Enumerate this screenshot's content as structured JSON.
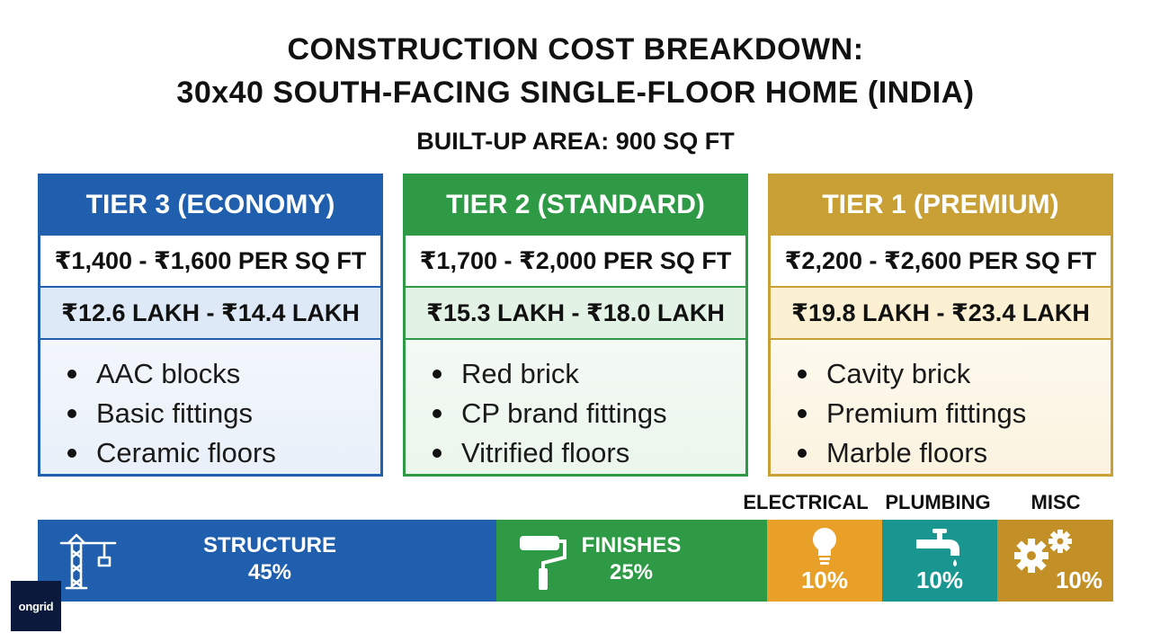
{
  "title_line1": "CONSTRUCTION COST BREAKDOWN:",
  "title_line2": "30x40 SOUTH-FACING SINGLE-FLOOR HOME (INDIA)",
  "subtitle": "BUILT-UP AREA: 900 SQ FT",
  "tiers": [
    {
      "name": "TIER 3 (ECONOMY)",
      "rate": "₹1,400 - ₹1,600 PER SQ FT",
      "total": "₹12.6 LAKH - ₹14.4 LAKH",
      "features": [
        "AAC blocks",
        "Basic fittings",
        "Ceramic floors"
      ],
      "color": "#1f5fad"
    },
    {
      "name": "TIER 2 (STANDARD)",
      "rate": "₹1,700 - ₹2,000 PER SQ FT",
      "total": "₹15.3 LAKH - ₹18.0 LAKH",
      "features": [
        "Red brick",
        "CP brand fittings",
        "Vitrified floors"
      ],
      "color": "#2e9a45"
    },
    {
      "name": "TIER 1 (PREMIUM)",
      "rate": "₹2,200 - ₹2,600 PER SQ FT",
      "total": "₹19.8 LAKH - ₹23.4 LAKH",
      "features": [
        "Cavity brick",
        "Premium fittings",
        "Marble floors"
      ],
      "color": "#c9a035"
    }
  ],
  "breakdown": [
    {
      "name": "STRUCTURE",
      "percent": "45%",
      "value": 45,
      "color": "#1f5fad",
      "icon": "crane-icon"
    },
    {
      "name": "FINISHES",
      "percent": "25%",
      "value": 25,
      "color": "#2e9a45",
      "icon": "paint-roller-icon"
    },
    {
      "name": "ELECTRICAL",
      "percent": "10%",
      "value": 10,
      "color": "#e9a028",
      "icon": "lightbulb-icon"
    },
    {
      "name": "PLUMBING",
      "percent": "10%",
      "value": 10,
      "color": "#18968f",
      "icon": "water-tap-icon"
    },
    {
      "name": "MISC",
      "percent": "10%",
      "value": 10,
      "color": "#c29026",
      "icon": "gears-icon"
    }
  ],
  "logo_text": "ongrid"
}
